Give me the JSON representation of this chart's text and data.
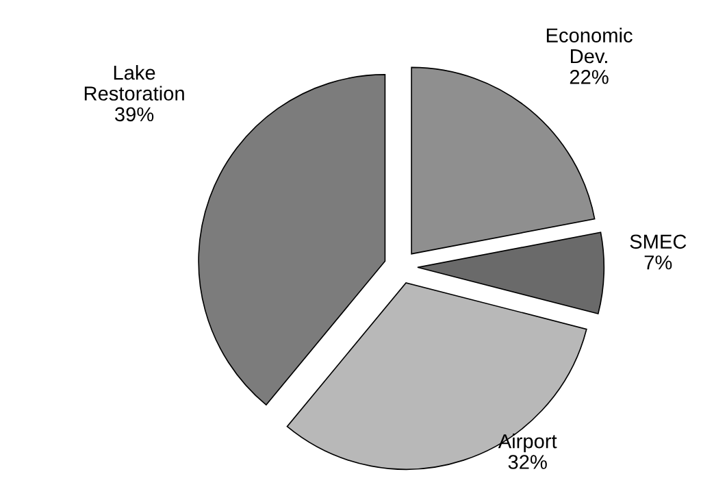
{
  "chart_data": {
    "type": "pie",
    "categories": [
      "Economic\nDev.",
      "SMEC",
      "Airport",
      "Lake\nRestoration"
    ],
    "values": [
      22,
      7,
      32,
      39
    ],
    "value_labels": [
      "22%",
      "7%",
      "32%",
      "39%"
    ],
    "colors": [
      "#8f8f8f",
      "#6a6a6a",
      "#b8b8b8",
      "#7c7c7c"
    ]
  }
}
